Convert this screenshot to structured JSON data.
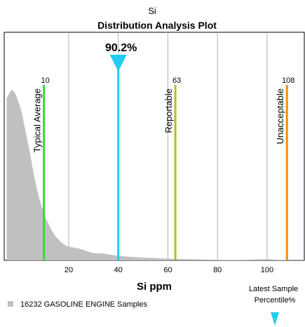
{
  "chart_data": {
    "type": "area",
    "element": "Si",
    "title": "Distribution Analysis Plot",
    "xlabel": "Si ppm",
    "ylabel": "",
    "xlim": [
      -6,
      115
    ],
    "ylim": [
      0,
      100
    ],
    "xticks": [
      20,
      40,
      60,
      80,
      100
    ],
    "grid": true,
    "density": {
      "name": "16232 GASOLINE ENGINE Samples",
      "color": "#c0c0c0",
      "x": [
        -5,
        -4,
        -3,
        -2,
        -1,
        0,
        1,
        2,
        3,
        4,
        5,
        6,
        7,
        8,
        9,
        10,
        11,
        12,
        13,
        14,
        15,
        16,
        17,
        18,
        19,
        20,
        22,
        24,
        26,
        28,
        30,
        32,
        34,
        36,
        38,
        40,
        42,
        44,
        46,
        48,
        50,
        55,
        60,
        65,
        70,
        75,
        80,
        85,
        90,
        95,
        100,
        105,
        110,
        115
      ],
      "y": [
        95,
        98,
        100,
        99,
        96,
        92,
        87,
        80,
        73,
        66,
        58,
        50,
        43,
        37,
        32,
        28,
        24,
        21,
        18,
        15.5,
        13.5,
        12,
        10.5,
        9.5,
        8.5,
        8,
        7.5,
        7,
        6,
        5,
        4.2,
        4,
        4,
        3.5,
        3,
        2.6,
        2.4,
        2.2,
        2,
        1.8,
        1.6,
        1.3,
        1,
        0.8,
        0.7,
        0.5,
        0.3,
        0.2,
        0.2,
        0.5,
        0.8,
        0.2,
        0.1,
        0.1
      ]
    },
    "thresholds": [
      {
        "name": "Typical Average",
        "value": 10,
        "label": "10",
        "color": "#33dd33"
      },
      {
        "name": "Reportable",
        "value": 63,
        "label": "63",
        "color": "#bbbb22"
      },
      {
        "name": "Unacceptable",
        "value": 108,
        "label": "108",
        "color": "#ff8811"
      }
    ],
    "latest_sample": {
      "value": 40,
      "percentile_label": "90.2%",
      "color": "#22ccf0"
    },
    "legend": {
      "label": "16232 GASOLINE ENGINE Samples",
      "placement": "bottom-left"
    },
    "latest_sample_legend": {
      "line1": "Latest Sample",
      "line2": "Percentile%"
    }
  }
}
